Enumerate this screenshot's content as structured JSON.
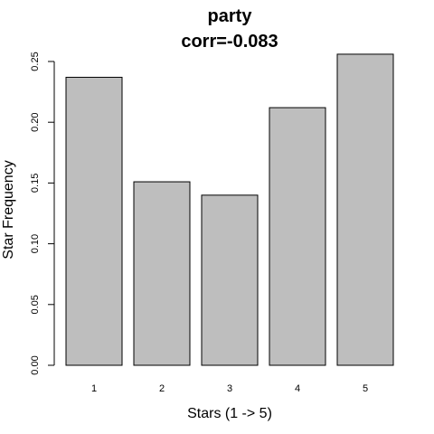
{
  "chart_data": {
    "type": "bar",
    "title": "party",
    "subtitle": "corr=-0.083",
    "xlabel": "Stars (1 -> 5)",
    "ylabel": "Star Frequency",
    "categories": [
      "1",
      "2",
      "3",
      "4",
      "5"
    ],
    "values": [
      0.237,
      0.151,
      0.14,
      0.212,
      0.256
    ],
    "ylim": [
      0,
      0.25
    ],
    "yticks": [
      "0.00",
      "0.05",
      "0.10",
      "0.15",
      "0.20",
      "0.25"
    ],
    "grid": false,
    "legend": "none",
    "colors": {
      "bar_fill": "#bebebe",
      "bar_stroke": "#000000"
    }
  }
}
